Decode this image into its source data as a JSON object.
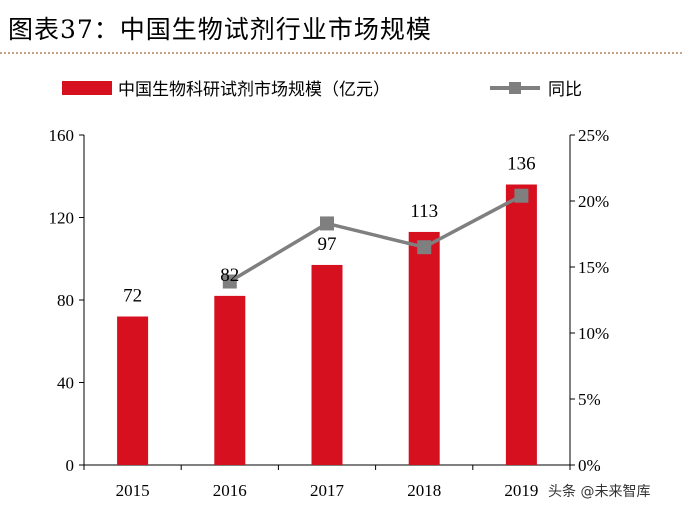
{
  "figure": {
    "title": "图表37：中国生物试剂行业市场规模"
  },
  "colors": {
    "bar": "#d7101f",
    "line": "#7f7f7f",
    "axis": "#000000"
  },
  "watermark": {
    "text": "头条 @未来智库"
  },
  "chart_data": {
    "type": "bar",
    "title": "图表37：中国生物试剂行业市场规模",
    "categories": [
      "2015",
      "2016",
      "2017",
      "2018",
      "2019"
    ],
    "series": [
      {
        "name": "中国生物科研试剂市场规模（亿元）",
        "type": "bar",
        "axis": "left",
        "values": [
          72,
          82,
          97,
          113,
          136
        ]
      },
      {
        "name": "同比",
        "type": "line",
        "axis": "right",
        "values": [
          null,
          13.9,
          18.3,
          16.5,
          20.4
        ]
      }
    ],
    "ylim": [
      0,
      160
    ],
    "yticks": [
      "0",
      "40",
      "80",
      "120",
      "160"
    ],
    "y2lim": [
      0,
      25
    ],
    "y2ticks": [
      "0%",
      "5%",
      "10%",
      "15%",
      "20%",
      "25%"
    ],
    "xlabel": "",
    "ylabel": "",
    "y2label": "",
    "legend_position": "top",
    "grid": false
  }
}
